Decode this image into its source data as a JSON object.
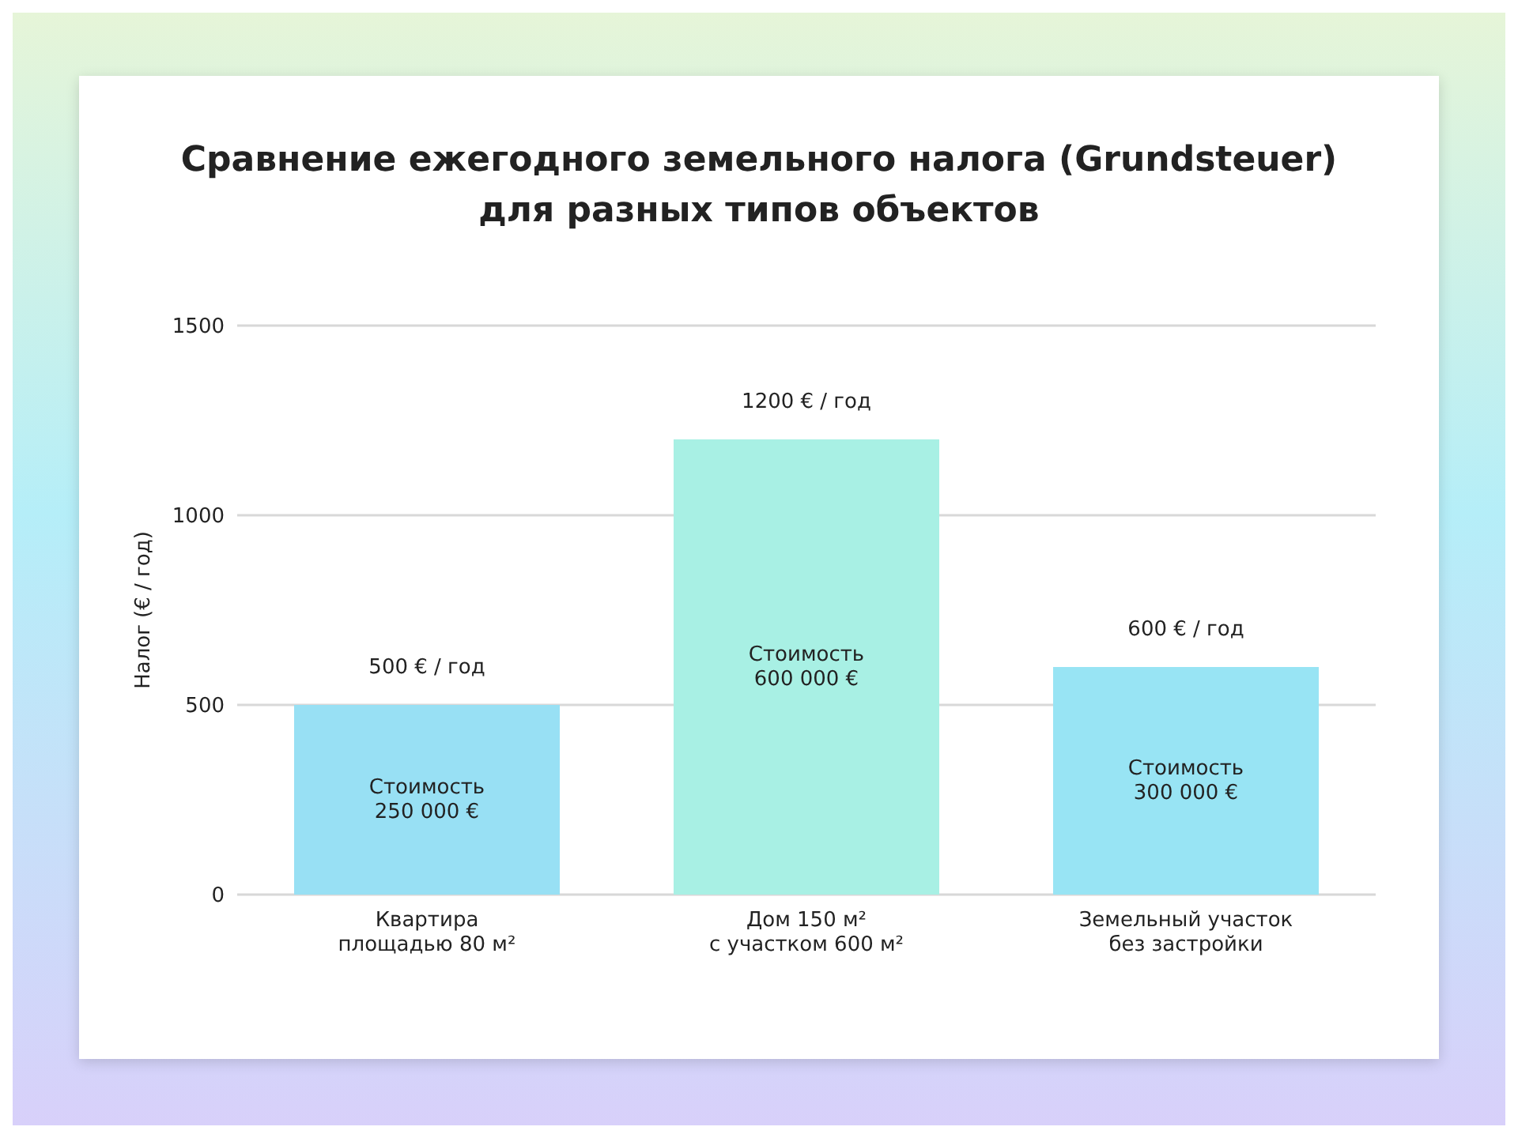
{
  "chart_data": {
    "type": "bar",
    "title": "Сравнение ежегодного земельного налога (Grundsteuer)\nдля разных типов объектов",
    "ylabel": "Налог  (€ / год)",
    "categories": [
      "Квартира\nплощадью 80 м²",
      "Дом 150 м²\nс участком 600 м²",
      "Земельный участок\nбез застройки"
    ],
    "values": [
      500,
      1200,
      600
    ],
    "colors": [
      "#98e0f4",
      "#a8f0e4",
      "#98e4f4"
    ],
    "value_labels": [
      "500 € / год",
      "1200 € / год",
      "600 € / год"
    ],
    "annotations": [
      "Стоимость\n250 000 €",
      "Стоимость\n600 000 €",
      "Стоимость\n300 000 €"
    ],
    "ylim": [
      0,
      1500
    ],
    "yticks": [
      0,
      500,
      1000,
      1500
    ],
    "grid": "y"
  }
}
